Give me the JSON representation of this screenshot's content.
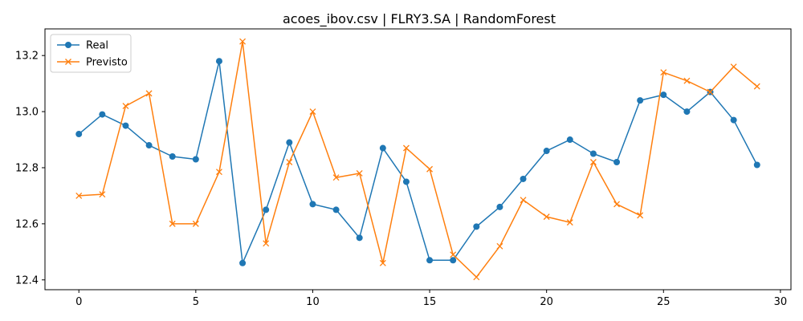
{
  "chart_data": {
    "type": "line",
    "title": "acoes_ibov.csv | FLRY3.SA | RandomForest",
    "xlabel": "",
    "ylabel": "",
    "xlim": [
      -1.45,
      30.45
    ],
    "ylim": [
      12.365,
      13.295
    ],
    "xticks": [
      0,
      5,
      10,
      15,
      20,
      25,
      30
    ],
    "yticks": [
      12.4,
      12.6,
      12.8,
      13.0,
      13.2
    ],
    "xtick_labels": [
      "0",
      "5",
      "10",
      "15",
      "20",
      "25",
      "30"
    ],
    "ytick_labels": [
      "12.4",
      "12.6",
      "12.8",
      "13.0",
      "13.2"
    ],
    "grid": false,
    "legend_position": "top-left",
    "x": [
      0,
      1,
      2,
      3,
      4,
      5,
      6,
      7,
      8,
      9,
      10,
      11,
      12,
      13,
      14,
      15,
      16,
      17,
      18,
      19,
      20,
      21,
      22,
      23,
      24,
      25,
      26,
      27,
      28,
      29
    ],
    "series": [
      {
        "name": "Real",
        "color": "#1f77b4",
        "marker": "circle",
        "values": [
          12.92,
          12.99,
          12.95,
          12.88,
          12.84,
          12.83,
          13.18,
          12.46,
          12.65,
          12.89,
          12.67,
          12.65,
          12.55,
          12.87,
          12.75,
          12.47,
          12.47,
          12.59,
          12.66,
          12.76,
          12.86,
          12.9,
          12.85,
          12.82,
          13.04,
          13.06,
          13.0,
          13.07,
          12.97,
          12.81
        ]
      },
      {
        "name": "Previsto",
        "color": "#ff7f0e",
        "marker": "x",
        "values": [
          12.7,
          12.705,
          13.02,
          13.065,
          12.6,
          12.6,
          12.785,
          13.25,
          12.53,
          12.82,
          13.0,
          12.765,
          12.78,
          12.46,
          12.87,
          12.795,
          12.49,
          12.41,
          12.52,
          12.685,
          12.625,
          12.605,
          12.82,
          12.67,
          12.63,
          13.14,
          13.11,
          13.07,
          13.16,
          13.09
        ]
      }
    ]
  }
}
